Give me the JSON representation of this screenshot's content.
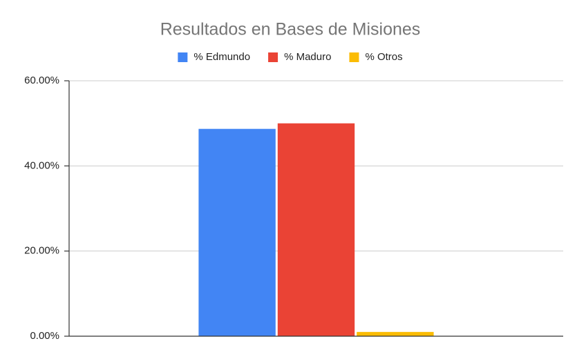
{
  "chart_data": {
    "type": "bar",
    "title": "Resultados en Bases de Misiones",
    "categories": [
      null
    ],
    "series": [
      {
        "name": "% Edmundo",
        "color": "#4285f4",
        "values": [
          48.7
        ]
      },
      {
        "name": "% Maduro",
        "color": "#ea4335",
        "values": [
          50.0
        ]
      },
      {
        "name": "% Otros",
        "color": "#fbbc04",
        "values": [
          1.0
        ]
      }
    ],
    "ylim": [
      0,
      60
    ],
    "yticks": [
      {
        "value": 0,
        "label": "0.00%"
      },
      {
        "value": 20,
        "label": "20.00%"
      },
      {
        "value": 40,
        "label": "40.00%"
      },
      {
        "value": 60,
        "label": "60.00%"
      }
    ],
    "grid": true,
    "legend": "top"
  }
}
